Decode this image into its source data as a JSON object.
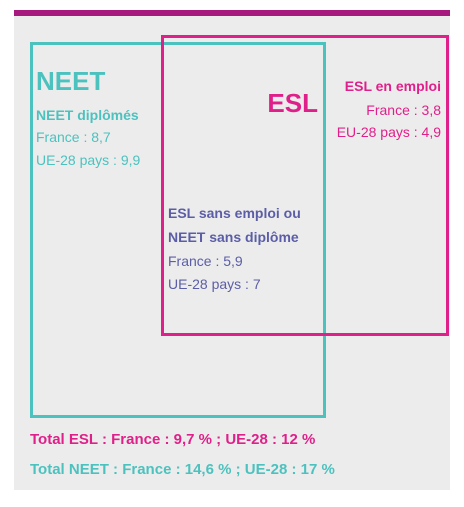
{
  "neet": {
    "title": "NEET",
    "subtitle": "NEET diplômés",
    "lines": [
      "France : 8,7",
      "UE-28 pays : 9,9"
    ]
  },
  "esl": {
    "title": "ESL",
    "subtitle": "ESL en emploi",
    "lines": [
      "France : 3,8",
      "EU-28 pays : 4,9"
    ]
  },
  "overlap": {
    "subtitle": [
      "ESL sans emploi ou",
      "NEET sans diplôme"
    ],
    "lines": [
      "France : 5,9",
      "UE-28 pays : 7"
    ]
  },
  "totals": [
    "Total ESL : France : 9,7 % ; UE-28 : 12 %",
    "Total NEET : France : 14,6 % ; UE-28 : 17 %"
  ]
}
